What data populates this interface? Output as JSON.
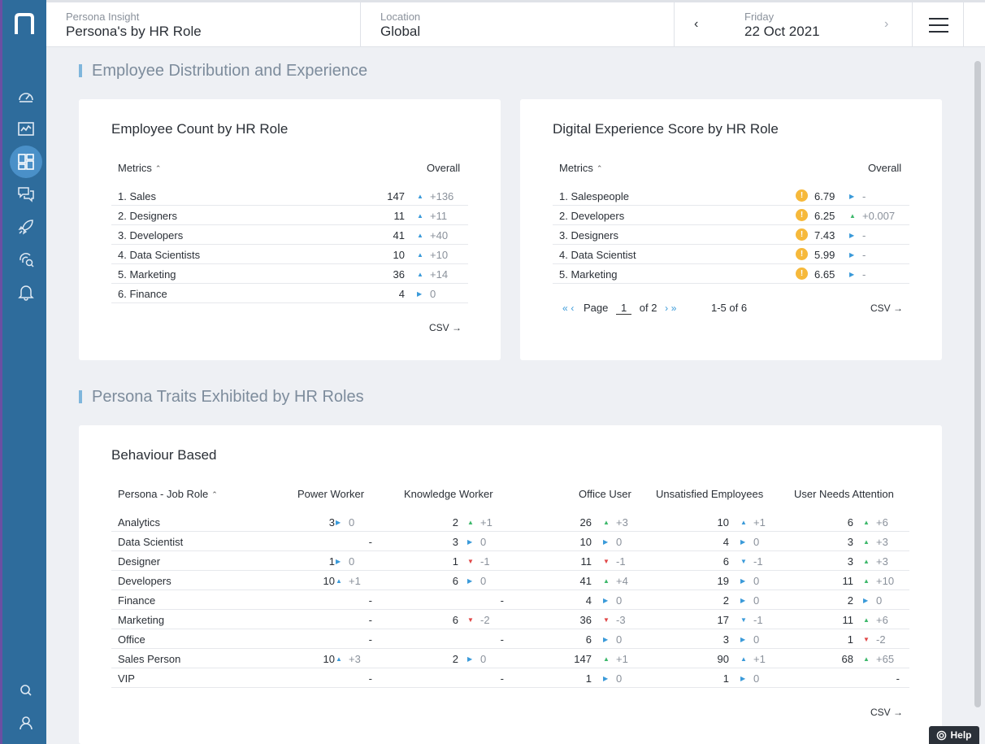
{
  "header": {
    "insight_label": "Persona Insight",
    "insight_value": "Persona's by HR Role",
    "location_label": "Location",
    "location_value": "Global",
    "day_label": "Friday",
    "date_value": "22 Oct 2021"
  },
  "sections": {
    "distribution": "Employee Distribution and Experience",
    "traits": "Persona Traits Exhibited by HR Roles"
  },
  "employee_count": {
    "title": "Employee Count by HR Role",
    "col_metrics": "Metrics",
    "col_overall": "Overall",
    "rows": [
      {
        "label": "1. Sales",
        "value": "147",
        "trend": "up",
        "delta": "+136"
      },
      {
        "label": "2. Designers",
        "value": "11",
        "trend": "up",
        "delta": "+11"
      },
      {
        "label": "3. Developers",
        "value": "41",
        "trend": "up",
        "delta": "+40"
      },
      {
        "label": "4. Data Scientists",
        "value": "10",
        "trend": "up",
        "delta": "+10"
      },
      {
        "label": "5. Marketing",
        "value": "36",
        "trend": "up",
        "delta": "+14"
      },
      {
        "label": "6. Finance",
        "value": "4",
        "trend": "flat",
        "delta": "0"
      }
    ],
    "csv": "CSV →"
  },
  "dex": {
    "title": "Digital Experience Score by HR Role",
    "col_metrics": "Metrics",
    "col_overall": "Overall",
    "rows": [
      {
        "label": "1. Salespeople",
        "value": "6.79",
        "trend": "flat",
        "delta": "-"
      },
      {
        "label": "2. Developers",
        "value": "6.25",
        "trend": "up",
        "delta": "+0.007"
      },
      {
        "label": "3. Designers",
        "value": "7.43",
        "trend": "flat",
        "delta": "-"
      },
      {
        "label": "4. Data Scientist",
        "value": "5.99",
        "trend": "flat",
        "delta": "-"
      },
      {
        "label": "5. Marketing",
        "value": "6.65",
        "trend": "flat",
        "delta": "-"
      }
    ],
    "pager": {
      "page_label": "Page",
      "page": "1",
      "of": "of 2",
      "range": "1-5 of 6"
    },
    "csv": "CSV →",
    "warn_glyph": "!"
  },
  "behaviour": {
    "title": "Behaviour Based",
    "columns": [
      "Persona - Job Role",
      "Power Worker",
      "Knowledge Worker",
      "Office User",
      "Unsatisfied Employees",
      "User Needs Attention"
    ],
    "rows": [
      {
        "role": "Analytics",
        "cells": [
          [
            "3",
            "right",
            "0"
          ],
          [
            "2",
            "up",
            "+1"
          ],
          [
            "26",
            "up",
            "+3"
          ],
          [
            "10",
            "upb",
            "+1"
          ],
          [
            "6",
            "up",
            "+6"
          ]
        ]
      },
      {
        "role": "Data Scientist",
        "cells": [
          [
            "-",
            "",
            ""
          ],
          [
            "3",
            "right",
            "0"
          ],
          [
            "10",
            "right",
            "0"
          ],
          [
            "4",
            "right",
            "0"
          ],
          [
            "3",
            "up",
            "+3"
          ]
        ]
      },
      {
        "role": "Designer",
        "cells": [
          [
            "1",
            "right",
            "0"
          ],
          [
            "1",
            "down",
            "-1"
          ],
          [
            "11",
            "down",
            "-1"
          ],
          [
            "6",
            "downb",
            "-1"
          ],
          [
            "3",
            "up",
            "+3"
          ]
        ]
      },
      {
        "role": "Developers",
        "cells": [
          [
            "10",
            "upb",
            "+1"
          ],
          [
            "6",
            "right",
            "0"
          ],
          [
            "41",
            "up",
            "+4"
          ],
          [
            "19",
            "right",
            "0"
          ],
          [
            "11",
            "up",
            "+10"
          ]
        ]
      },
      {
        "role": "Finance",
        "cells": [
          [
            "-",
            "",
            ""
          ],
          [
            "-",
            "",
            ""
          ],
          [
            "4",
            "right",
            "0"
          ],
          [
            "2",
            "right",
            "0"
          ],
          [
            "2",
            "right",
            "0"
          ]
        ]
      },
      {
        "role": "Marketing",
        "cells": [
          [
            "-",
            "",
            ""
          ],
          [
            "6",
            "down",
            "-2"
          ],
          [
            "36",
            "down",
            "-3"
          ],
          [
            "17",
            "downb",
            "-1"
          ],
          [
            "11",
            "up",
            "+6"
          ]
        ]
      },
      {
        "role": "Office",
        "cells": [
          [
            "-",
            "",
            ""
          ],
          [
            "-",
            "",
            ""
          ],
          [
            "6",
            "right",
            "0"
          ],
          [
            "3",
            "right",
            "0"
          ],
          [
            "1",
            "down",
            "-2"
          ]
        ]
      },
      {
        "role": "Sales Person",
        "cells": [
          [
            "10",
            "upb",
            "+3"
          ],
          [
            "2",
            "right",
            "0"
          ],
          [
            "147",
            "up",
            "+1"
          ],
          [
            "90",
            "upb",
            "+1"
          ],
          [
            "68",
            "up",
            "+65"
          ]
        ]
      },
      {
        "role": "VIP",
        "cells": [
          [
            "-",
            "",
            ""
          ],
          [
            "-",
            "",
            ""
          ],
          [
            "1",
            "right",
            "0"
          ],
          [
            "1",
            "right",
            "0"
          ],
          [
            "-",
            "",
            ""
          ]
        ]
      }
    ],
    "csv": "CSV →"
  },
  "help": "Help",
  "icons": {
    "logo": "n-logo-icon",
    "nav": [
      "dashboard-gauge-icon",
      "chart-monitor-icon",
      "layout-grid-icon",
      "chat-bubbles-icon",
      "rocket-icon",
      "fingerprint-search-icon",
      "bell-icon",
      "search-icon",
      "user-icon"
    ]
  }
}
